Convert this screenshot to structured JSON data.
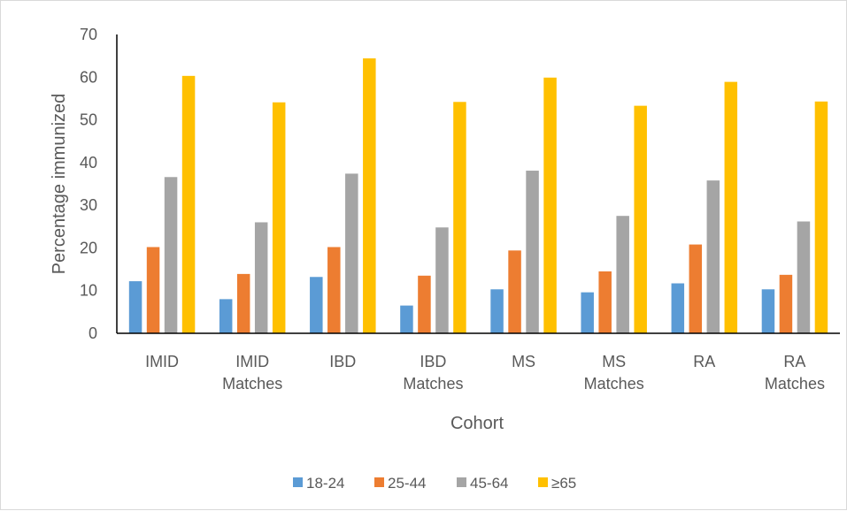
{
  "chart_data": {
    "type": "bar",
    "title": "",
    "xlabel": "Cohort",
    "ylabel": "Percentage immunized",
    "ylim": [
      0,
      70
    ],
    "yticks": [
      0,
      10,
      20,
      30,
      40,
      50,
      60,
      70
    ],
    "grid": false,
    "legend_position": "bottom",
    "categories": [
      [
        "IMID"
      ],
      [
        "IMID",
        "Matches"
      ],
      [
        "IBD"
      ],
      [
        "IBD",
        "Matches"
      ],
      [
        "MS"
      ],
      [
        "MS",
        "Matches"
      ],
      [
        "RA"
      ],
      [
        "RA",
        "Matches"
      ]
    ],
    "series": [
      {
        "name": "18-24",
        "color": "#5b9bd5",
        "values": [
          12.2,
          8.0,
          13.2,
          6.5,
          10.3,
          9.6,
          11.7,
          10.3
        ]
      },
      {
        "name": "25-44",
        "color": "#ed7d31",
        "values": [
          20.2,
          13.9,
          20.2,
          13.5,
          19.4,
          14.5,
          20.8,
          13.7
        ]
      },
      {
        "name": "45-64",
        "color": "#a5a5a5",
        "values": [
          36.6,
          26.0,
          37.4,
          24.8,
          38.1,
          27.5,
          35.8,
          26.2
        ]
      },
      {
        "name": "≥65",
        "color": "#ffc000",
        "values": [
          60.3,
          54.1,
          64.4,
          54.2,
          59.9,
          53.3,
          58.9,
          54.3
        ]
      }
    ]
  }
}
